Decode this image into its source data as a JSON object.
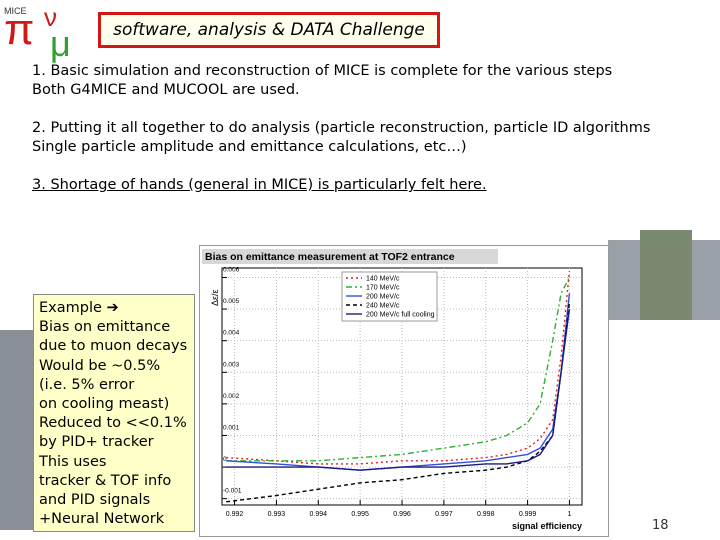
{
  "header": {
    "title": "software, analysis & DATA Challenge",
    "logo": {
      "symbols": [
        "π",
        "ν",
        "μ"
      ],
      "text": "MICE"
    }
  },
  "points": [
    {
      "lines": [
        "1. Basic simulation and reconstruction of MICE is complete for the various steps",
        "Both G4MICE and MUCOOL are used."
      ]
    },
    {
      "lines": [
        "2. Putting it all together to do analysis (particle reconstruction, particle ID algorithms",
        "Single particle amplitude and emittance calculations, etc…)"
      ]
    },
    {
      "lines": [
        "3. Shortage of hands (general in MICE) is particularly felt here."
      ]
    }
  ],
  "callout": {
    "lines": [
      "Example ➔",
      "Bias on emittance",
      "due to muon decays",
      "Would be ~0.5%",
      "(i.e. 5% error",
      "on cooling meast)",
      "Reduced to <<0.1%",
      "by PID+ tracker",
      "This uses",
      "tracker & TOF info",
      "and PID signals",
      "+Neural Network"
    ]
  },
  "chart_data": {
    "type": "line",
    "title": "Bias on emittance measurement at TOF2 entrance",
    "x_label": "signal efficiency",
    "y_label": "Δε/ε",
    "x": [
      0.9918,
      0.993,
      0.994,
      0.995,
      0.996,
      0.997,
      0.998,
      0.9985,
      0.999,
      0.9993,
      0.9996,
      0.9998,
      1
    ],
    "series": [
      {
        "name": "140 MeV/c",
        "color": "#e02020",
        "dash": "2,3",
        "values": [
          0.0003,
          0.0002,
          0.0001,
          0.0001,
          0.0002,
          0.0002,
          0.0003,
          0.0004,
          0.0006,
          0.0009,
          0.0015,
          0.0035,
          0.0062
        ]
      },
      {
        "name": "170 MeV/c",
        "color": "#30b030",
        "dash": "6,3,2,3",
        "values": [
          0.0002,
          0.0002,
          0.0002,
          0.0003,
          0.0004,
          0.0006,
          0.0008,
          0.001,
          0.0014,
          0.002,
          0.004,
          0.0055,
          0.006
        ]
      },
      {
        "name": "200 MeV/c",
        "color": "#3050e0",
        "dash": "",
        "values": [
          0.0002,
          0.0001,
          0,
          -0.0001,
          0,
          0.0001,
          0.0002,
          0.0003,
          0.0004,
          0.0006,
          0.0012,
          0.003,
          0.0055
        ]
      },
      {
        "name": "240 MeV/c",
        "color": "#000000",
        "dash": "4,3",
        "values": [
          -0.0011,
          -0.0009,
          -0.0007,
          -0.0005,
          -0.0004,
          -0.0002,
          -0.0001,
          0,
          0.0002,
          0.0005,
          0.001,
          0.003,
          0.0052
        ]
      },
      {
        "name": "200 MeV/c full cooling",
        "color": "#1a1a80",
        "dash": "",
        "values": [
          0,
          0,
          0,
          -0.0001,
          0,
          0,
          0.0001,
          0.0001,
          0.0002,
          0.0004,
          0.001,
          0.003,
          0.005
        ]
      }
    ],
    "xlim": [
      0.9917,
      1.0003
    ],
    "ylim": [
      -0.0012,
      0.0063
    ],
    "xticks": [
      0.992,
      0.993,
      0.994,
      0.995,
      0.996,
      0.997,
      0.998,
      0.999,
      1
    ],
    "yticks": [
      -0.001,
      0,
      0.001,
      0.002,
      0.003,
      0.004,
      0.005,
      0.006
    ],
    "grid": true
  },
  "page_number": "18"
}
